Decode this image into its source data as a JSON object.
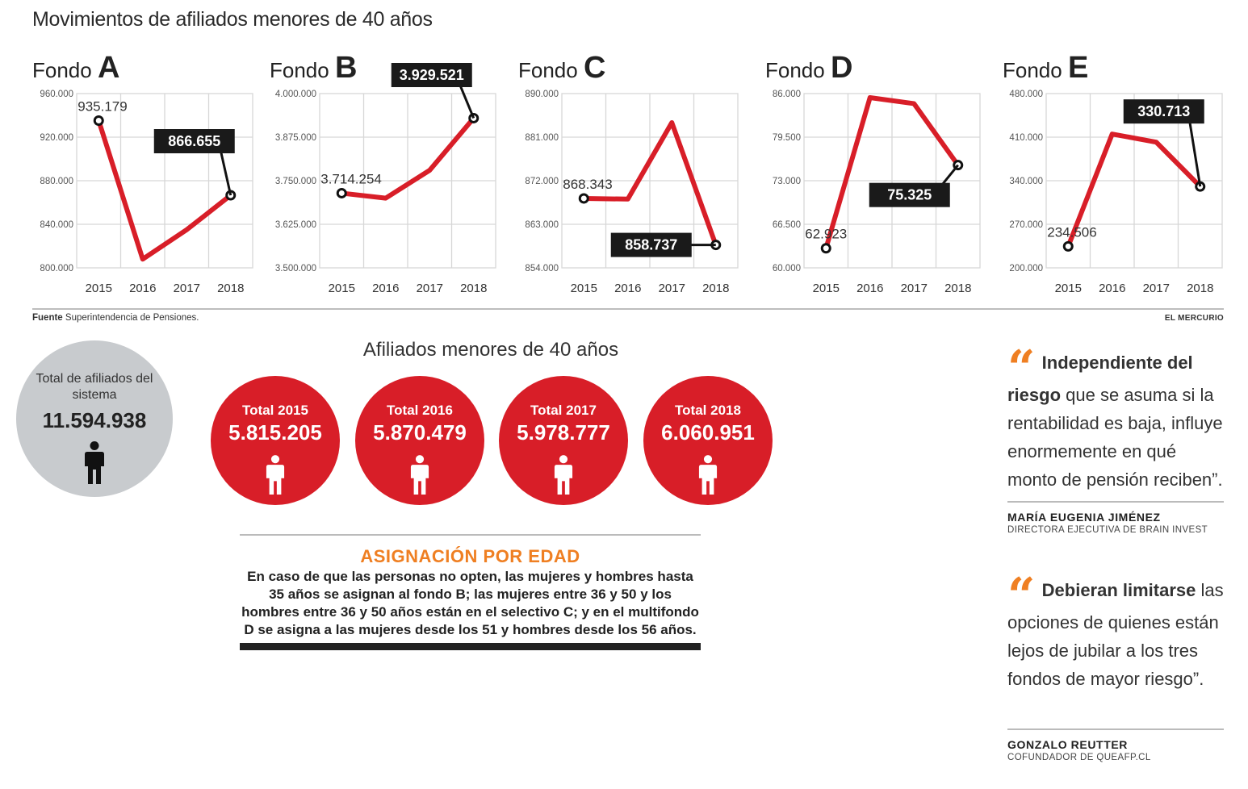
{
  "title": "Movimientos de afiliados menores de 40 años",
  "source_label": "Fuente",
  "source_text": "Superintendencia de Pensiones.",
  "brand": "EL MERCURIO",
  "colors": {
    "line": "#d81e28",
    "grid": "#d7d7d7",
    "callout_bg": "#1a1a1a",
    "accent": "#ef7f22"
  },
  "chart_data": [
    {
      "type": "line",
      "title_prefix": "Fondo",
      "title": "A",
      "categories": [
        "2015",
        "2016",
        "2017",
        "2018"
      ],
      "values": [
        935179,
        808000,
        835000,
        866655
      ],
      "ylim": [
        800000,
        960000
      ],
      "yticks": [
        "960.000",
        "920.000",
        "880.000",
        "840.000",
        "800.000"
      ],
      "labels": [
        {
          "index": 0,
          "text": "935.179",
          "style": "plain"
        },
        {
          "index": 3,
          "text": "866.655",
          "style": "box"
        }
      ]
    },
    {
      "type": "line",
      "title_prefix": "Fondo",
      "title": "B",
      "categories": [
        "2015",
        "2016",
        "2017",
        "2018"
      ],
      "values": [
        3714254,
        3700000,
        3780000,
        3929521
      ],
      "ylim": [
        3500000,
        4000000
      ],
      "yticks": [
        "4.000.000",
        "3.875.000",
        "3.750.000",
        "3.625.000",
        "3.500.000"
      ],
      "labels": [
        {
          "index": 0,
          "text": "3.714.254",
          "style": "plain"
        },
        {
          "index": 3,
          "text": "3.929.521",
          "style": "box"
        }
      ]
    },
    {
      "type": "line",
      "title_prefix": "Fondo",
      "title": "C",
      "categories": [
        "2015",
        "2016",
        "2017",
        "2018"
      ],
      "values": [
        868343,
        868200,
        884000,
        858737
      ],
      "ylim": [
        854000,
        890000
      ],
      "yticks": [
        "890.000",
        "881.000",
        "872.000",
        "863.000",
        "854.000"
      ],
      "labels": [
        {
          "index": 0,
          "text": "868.343",
          "style": "plain"
        },
        {
          "index": 3,
          "text": "858.737",
          "style": "box"
        }
      ]
    },
    {
      "type": "line",
      "title_prefix": "Fondo",
      "title": "D",
      "categories": [
        "2015",
        "2016",
        "2017",
        "2018"
      ],
      "values": [
        62923,
        85400,
        84500,
        75325
      ],
      "ylim": [
        60000,
        86000
      ],
      "yticks": [
        "86.000",
        "79.500",
        "73.000",
        "66.500",
        "60.000"
      ],
      "labels": [
        {
          "index": 0,
          "text": "62.923",
          "style": "plain"
        },
        {
          "index": 3,
          "text": "75.325",
          "style": "box"
        }
      ]
    },
    {
      "type": "line",
      "title_prefix": "Fondo",
      "title": "E",
      "categories": [
        "2015",
        "2016",
        "2017",
        "2018"
      ],
      "values": [
        234506,
        415000,
        402000,
        330713
      ],
      "ylim": [
        200000,
        480000
      ],
      "yticks": [
        "480.000",
        "410.000",
        "340.000",
        "270.000",
        "200.000"
      ],
      "labels": [
        {
          "index": 0,
          "text": "234.506",
          "style": "plain"
        },
        {
          "index": 3,
          "text": "330.713",
          "style": "box"
        }
      ]
    }
  ],
  "system_total": {
    "label": "Total de afiliados del sistema",
    "value": "11.594.938"
  },
  "subtitle": "Afiliados menores de 40 años",
  "yearly_totals": [
    {
      "label": "Total 2015",
      "value": "5.815.205"
    },
    {
      "label": "Total 2016",
      "value": "5.870.479"
    },
    {
      "label": "Total 2017",
      "value": "5.978.777"
    },
    {
      "label": "Total 2018",
      "value": "6.060.951"
    }
  ],
  "info_box": {
    "title": "ASIGNACIÓN POR EDAD",
    "text": "En caso de que las personas no opten, las mujeres y hombres hasta 35 años se asignan al fondo B; las mujeres entre 36 y 50 y los hombres entre 36 y 50 años están en el selectivo C; y en el multifondo D se asigna a las mujeres desde los 51 y hombres desde los 56 años."
  },
  "quotes": [
    {
      "mark": "“",
      "lead": "Independiente del riesgo",
      "text": "que se asuma si la rentabilidad es baja, influye enormemente en qué monto de pensión reciben”.",
      "author": "MARÍA EUGENIA JIMÉNEZ",
      "role": "DIRECTORA EJECUTIVA DE BRAIN INVEST"
    },
    {
      "mark": "“",
      "lead": "Debieran limitarse",
      "text": "las opciones de quienes están lejos de jubilar a los tres fondos de mayor riesgo”.",
      "author": "GONZALO REUTTER",
      "role": "COFUNDADOR DE QUEAFP.CL"
    }
  ]
}
